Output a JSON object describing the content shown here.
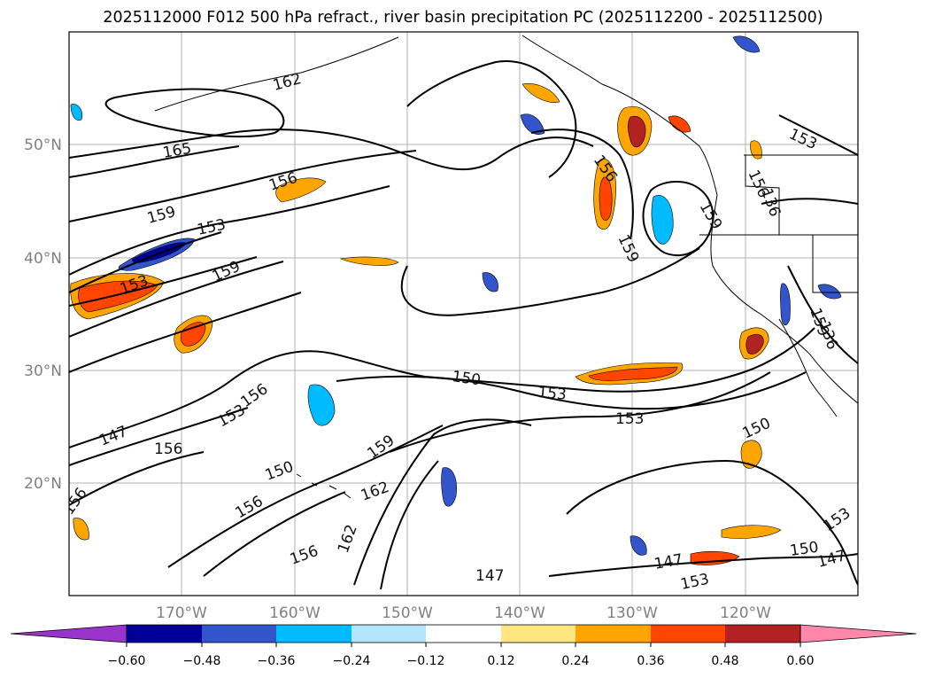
{
  "title": "2025112000 F012 500 hPa refract., river basin precipitation PC (2025112200 - 2025112500)",
  "map": {
    "lat_ticks": [
      "50°N",
      "40°N",
      "30°N",
      "20°N"
    ],
    "lon_ticks": [
      "170°W",
      "160°W",
      "150°W",
      "140°W",
      "130°W",
      "120°W"
    ],
    "lon_range": [
      -179,
      -109
    ],
    "lat_range": [
      10.3,
      59.3
    ],
    "gridlines": true,
    "contour_labels": [
      "162",
      "165",
      "156",
      "159",
      "153",
      "159",
      "153",
      "156",
      "159",
      "159",
      "156",
      "159",
      "153",
      "150",
      "153",
      "153",
      "156",
      "153",
      "147",
      "156",
      "159",
      "150",
      "156",
      "162",
      "162",
      "156",
      "156",
      "147",
      "147",
      "150",
      "147",
      "153",
      "150",
      "153",
      "136",
      "136"
    ]
  },
  "colorbar": {
    "ticks": [
      "−0.60",
      "−0.48",
      "−0.36",
      "−0.24",
      "−0.12",
      "0.12",
      "0.24",
      "0.36",
      "0.48",
      "0.60"
    ],
    "colors": [
      "#9933cc",
      "#000099",
      "#3355cc",
      "#00bbff",
      "#b3e5ff",
      "#ffffff",
      "#ffe680",
      "#ffa500",
      "#ff4500",
      "#b22222",
      "#ff88aa"
    ],
    "extend": "both"
  }
}
